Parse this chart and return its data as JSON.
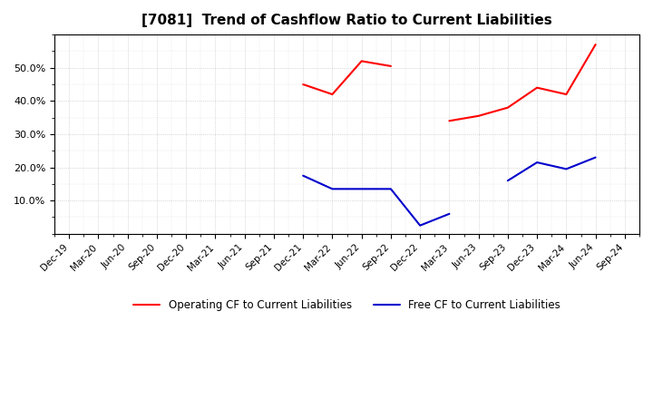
{
  "title": "[7081]  Trend of Cashflow Ratio to Current Liabilities",
  "x_labels": [
    "Dec-19",
    "Mar-20",
    "Jun-20",
    "Sep-20",
    "Dec-20",
    "Mar-21",
    "Jun-21",
    "Sep-21",
    "Dec-21",
    "Mar-22",
    "Jun-22",
    "Sep-22",
    "Dec-22",
    "Mar-23",
    "Jun-23",
    "Sep-23",
    "Dec-23",
    "Mar-24",
    "Jun-24",
    "Sep-24"
  ],
  "operating_cf": [
    null,
    null,
    null,
    null,
    null,
    null,
    null,
    null,
    0.45,
    0.42,
    0.52,
    0.505,
    null,
    0.34,
    0.355,
    0.38,
    0.44,
    0.42,
    0.57,
    null
  ],
  "free_cf": [
    null,
    null,
    null,
    null,
    null,
    null,
    null,
    null,
    0.175,
    0.135,
    0.135,
    0.135,
    0.025,
    0.06,
    null,
    0.16,
    0.215,
    0.195,
    0.23,
    null
  ],
  "operating_color": "#ff0000",
  "free_color": "#0000cc",
  "ylim": [
    0,
    0.6
  ],
  "yticks": [
    0.1,
    0.2,
    0.3,
    0.4,
    0.5
  ],
  "legend_labels": [
    "Operating CF to Current Liabilities",
    "Free CF to Current Liabilities"
  ],
  "background_color": "#ffffff",
  "grid_color": "#bbbbbb"
}
